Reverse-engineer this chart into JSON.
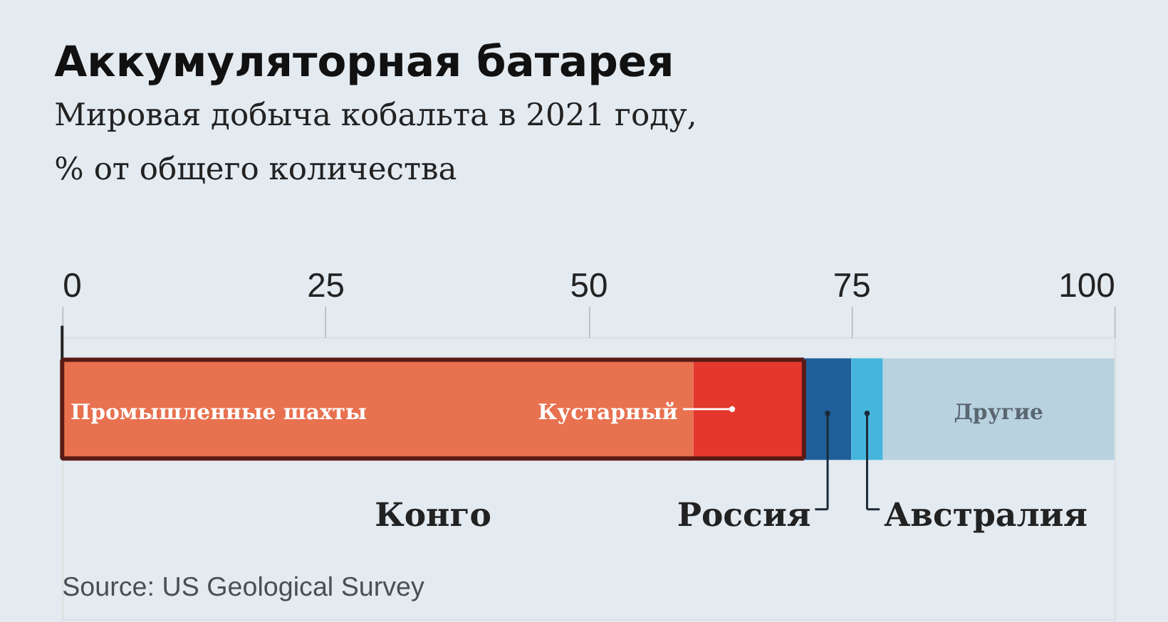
{
  "chart_data": {
    "type": "bar",
    "orientation": "horizontal",
    "stacked": true,
    "title": "Аккумуляторная батарея",
    "subtitle": [
      "Мировая добыча кобальта в 2021 году,",
      "% от общего количества"
    ],
    "categories": [
      null
    ],
    "series": [
      {
        "name": "Промышленные шахты",
        "color": "#e8714f",
        "values": [
          60
        ]
      },
      {
        "name": "Кустарный",
        "color": "#e4382d",
        "values": [
          10.5
        ]
      },
      {
        "name": "Россия",
        "color": "#1f5f99",
        "values": [
          4.5
        ]
      },
      {
        "name": "Австралия",
        "color": "#45b5dc",
        "values": [
          3
        ]
      },
      {
        "name": "Другие",
        "color": "#b8d2e0",
        "values": [
          22
        ]
      }
    ],
    "xlim": [
      0,
      100
    ],
    "xticks": [
      0,
      25,
      50,
      75,
      100
    ],
    "grid": false,
    "legend": false,
    "annotations": [
      "Конго",
      "Source: US Geological Survey"
    ]
  }
}
